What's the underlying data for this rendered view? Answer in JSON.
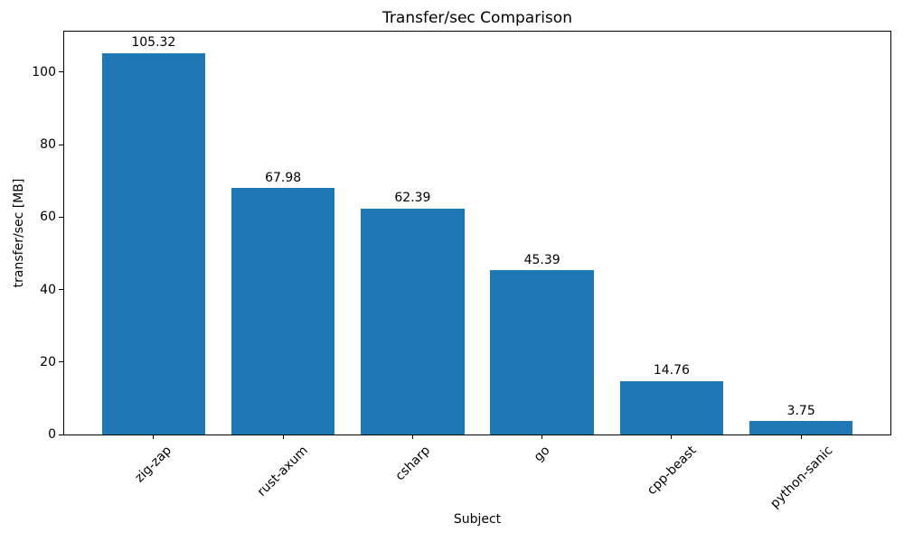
{
  "chart_data": {
    "type": "bar",
    "title": "Transfer/sec Comparison",
    "xlabel": "Subject",
    "ylabel": "transfer/sec [MB]",
    "categories": [
      "zig-zap",
      "rust-axum",
      "csharp",
      "go",
      "cpp-beast",
      "python-sanic"
    ],
    "values": [
      105.32,
      67.98,
      62.39,
      45.39,
      14.76,
      3.75
    ],
    "value_labels": [
      "105.32",
      "67.98",
      "62.39",
      "45.39",
      "14.76",
      "3.75"
    ],
    "yticks": [
      0,
      20,
      40,
      60,
      80,
      100
    ],
    "ylim": [
      0,
      111.2
    ],
    "bar_color": "#1f77b4",
    "background_color": "#ffffff",
    "text_color": "#000000",
    "grid": false,
    "legend": "none",
    "xtick_rotation_deg": 45
  }
}
